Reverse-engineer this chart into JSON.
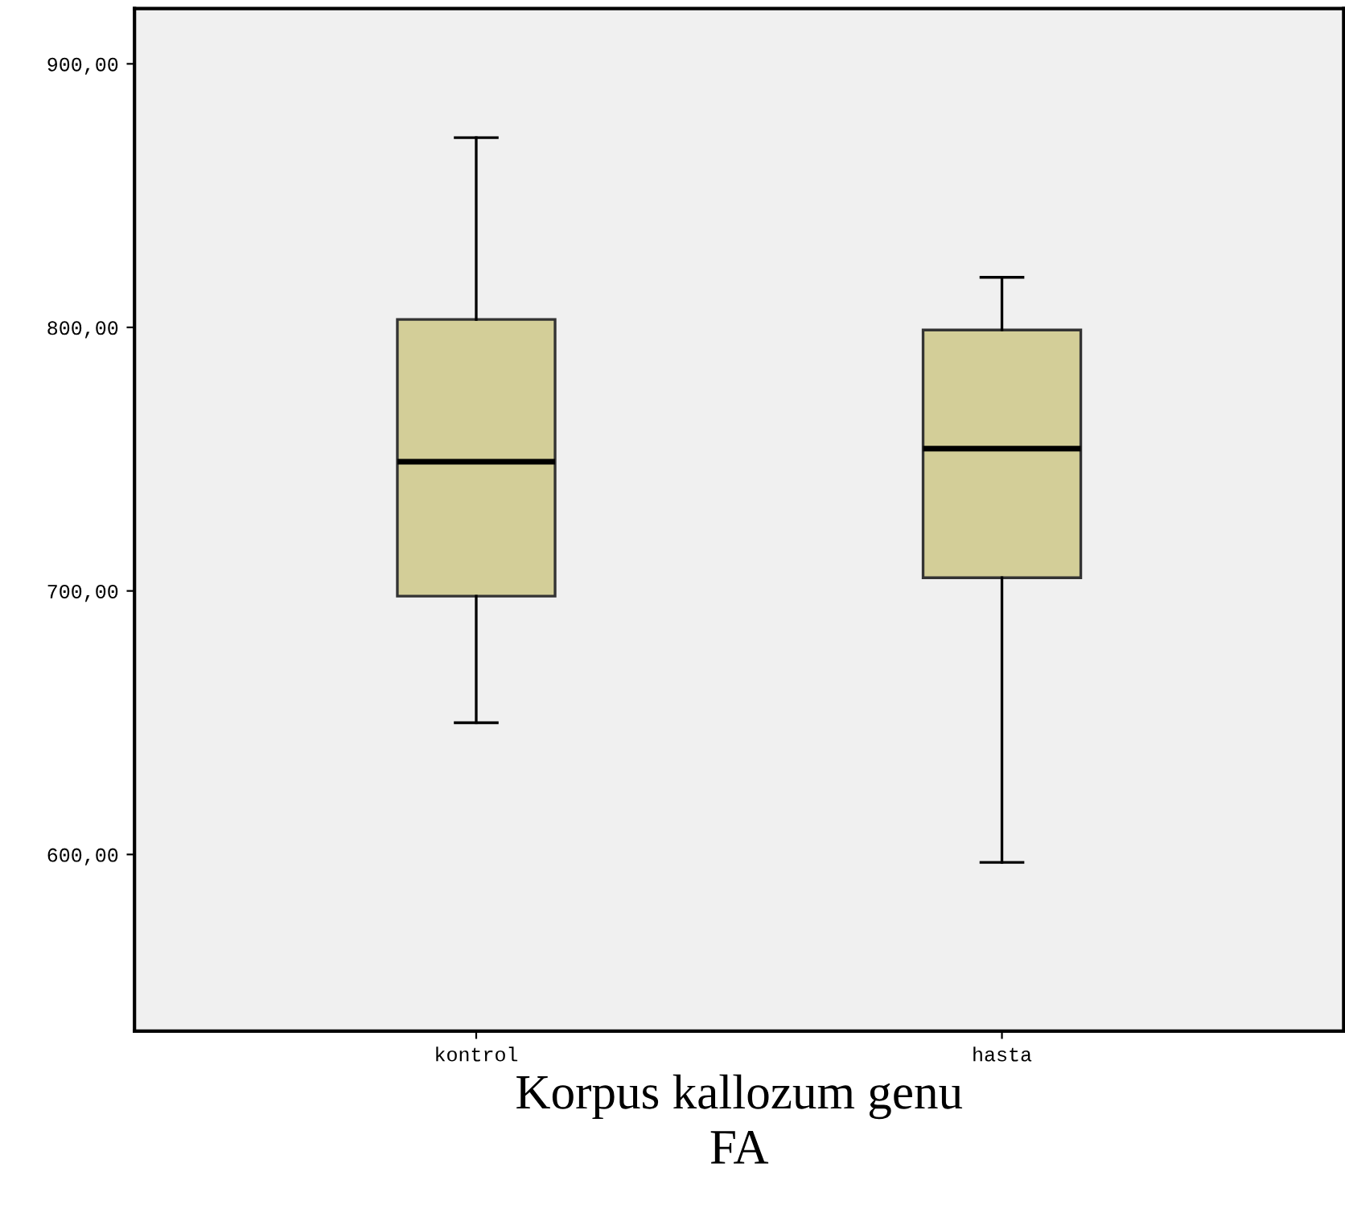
{
  "chart_data": {
    "type": "box",
    "xlabel": "Korpus kallozum genu\nFA",
    "categories": [
      "kontrol",
      "hasta"
    ],
    "boxes": [
      {
        "low": 650,
        "q1": 698,
        "median": 749,
        "q3": 803,
        "high": 872
      },
      {
        "low": 597,
        "q1": 705,
        "median": 754,
        "q3": 799,
        "high": 819
      }
    ],
    "color": "#d3ce98",
    "ylim": [
      533,
      921
    ],
    "yticks": [
      {
        "value": 600,
        "label": "600,00"
      },
      {
        "value": 700,
        "label": "700,00"
      },
      {
        "value": 800,
        "label": "800,00"
      },
      {
        "value": 900,
        "label": "900,00"
      }
    ],
    "grid": false
  }
}
